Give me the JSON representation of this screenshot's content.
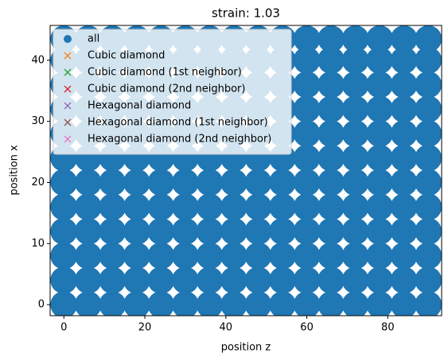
{
  "chart_data": {
    "type": "scatter",
    "title": "strain: 1.03",
    "xlabel": "position z",
    "ylabel": "position x",
    "xlim": [
      -3.4,
      93.3
    ],
    "ylim": [
      -1.8,
      45.7
    ],
    "xticks": [
      0,
      20,
      40,
      60,
      80
    ],
    "yticks": [
      0,
      10,
      20,
      30,
      40
    ],
    "legend": "upper left",
    "series": [
      {
        "name": "all",
        "color": "#1f77b4",
        "marker": "o",
        "x": [
          0,
          6,
          12,
          18,
          24,
          30,
          36,
          42,
          48,
          54,
          60,
          66,
          72,
          78,
          84,
          90,
          0,
          6,
          12,
          18,
          24,
          30,
          36,
          42,
          48,
          54,
          60,
          66,
          72,
          78,
          84,
          90,
          0,
          6,
          12,
          18,
          24,
          30,
          36,
          42,
          48,
          54,
          60,
          66,
          72,
          78,
          84,
          90,
          0,
          6,
          12,
          18,
          24,
          30,
          36,
          42,
          48,
          54,
          60,
          66,
          72,
          78,
          84,
          90,
          0,
          6,
          12,
          18,
          24,
          30,
          36,
          42,
          48,
          54,
          60,
          66,
          72,
          78,
          84,
          90,
          0,
          6,
          12,
          18,
          24,
          30,
          36,
          42,
          48,
          54,
          60,
          66,
          72,
          78,
          84,
          90,
          0,
          6,
          12,
          18,
          24,
          30,
          36,
          42,
          48,
          54,
          60,
          66,
          72,
          78,
          84,
          90,
          0,
          6,
          12,
          18,
          24,
          30,
          36,
          42,
          48,
          54,
          60,
          66,
          72,
          78,
          84,
          90,
          0,
          6,
          12,
          18,
          24,
          30,
          36,
          42,
          48,
          54,
          60,
          66,
          72,
          78,
          84,
          90,
          0,
          6,
          12,
          18,
          24,
          30,
          36,
          42,
          48,
          54,
          60,
          66,
          72,
          78,
          84,
          90,
          0,
          6,
          12,
          18,
          24,
          30,
          36,
          42,
          48,
          54,
          60,
          66,
          72,
          78,
          84,
          90,
          0,
          6,
          12,
          18,
          24,
          30,
          36,
          42,
          48,
          54,
          60,
          66,
          72,
          78,
          84,
          90
        ],
        "values": [
          0,
          0,
          0,
          0,
          0,
          0,
          0,
          0,
          0,
          0,
          0,
          0,
          0,
          0,
          0,
          0,
          4,
          4,
          4,
          4,
          4,
          4,
          4,
          4,
          4,
          4,
          4,
          4,
          4,
          4,
          4,
          4,
          8,
          8,
          8,
          8,
          8,
          8,
          8,
          8,
          8,
          8,
          8,
          8,
          8,
          8,
          8,
          8,
          12,
          12,
          12,
          12,
          12,
          12,
          12,
          12,
          12,
          12,
          12,
          12,
          12,
          12,
          12,
          12,
          16,
          16,
          16,
          16,
          16,
          16,
          16,
          16,
          16,
          16,
          16,
          16,
          16,
          16,
          16,
          16,
          20,
          20,
          20,
          20,
          20,
          20,
          20,
          20,
          20,
          20,
          20,
          20,
          20,
          20,
          20,
          20,
          24,
          24,
          24,
          24,
          24,
          24,
          24,
          24,
          24,
          24,
          24,
          24,
          24,
          24,
          24,
          24,
          28,
          28,
          28,
          28,
          28,
          28,
          28,
          28,
          28,
          28,
          28,
          28,
          28,
          28,
          28,
          28,
          32,
          32,
          32,
          32,
          32,
          32,
          32,
          32,
          32,
          32,
          32,
          32,
          32,
          32,
          32,
          32,
          36,
          36,
          36,
          36,
          36,
          36,
          36,
          36,
          36,
          36,
          36,
          36,
          36,
          36,
          36,
          36,
          40,
          40,
          40,
          40,
          40,
          40,
          40,
          40,
          40,
          40,
          40,
          40,
          40,
          40,
          40,
          40,
          43.5,
          43.5,
          43.5,
          43.5,
          43.5,
          43.5,
          43.5,
          43.5,
          43.5,
          43.5,
          43.5,
          43.5,
          43.5,
          43.5,
          43.5,
          43.5
        ]
      },
      {
        "name": "Cubic diamond",
        "color": "#ff7f0e",
        "marker": "x",
        "x": [],
        "values": []
      },
      {
        "name": "Cubic diamond (1st neighbor)",
        "color": "#2ca02c",
        "marker": "x",
        "x": [],
        "values": []
      },
      {
        "name": "Cubic diamond (2nd neighbor)",
        "color": "#d62728",
        "marker": "x",
        "x": [],
        "values": []
      },
      {
        "name": "Hexagonal diamond",
        "color": "#9467bd",
        "marker": "x",
        "x": [],
        "values": []
      },
      {
        "name": "Hexagonal diamond (1st neighbor)",
        "color": "#8c564b",
        "marker": "x",
        "x": [],
        "values": []
      },
      {
        "name": "Hexagonal diamond (2nd neighbor)",
        "color": "#e377c2",
        "marker": "x",
        "x": [],
        "values": []
      }
    ]
  }
}
